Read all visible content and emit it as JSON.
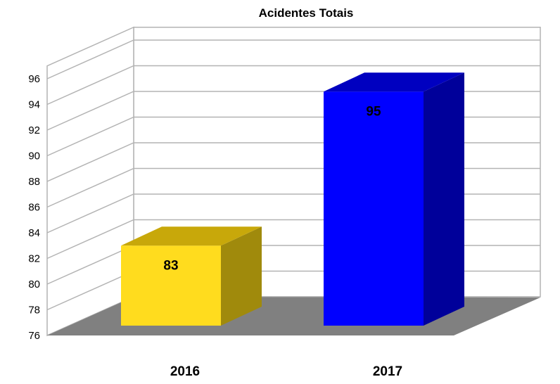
{
  "chart_data": {
    "type": "bar",
    "title": "Acidentes Totais",
    "categories": [
      "2016",
      "2017"
    ],
    "values": [
      83,
      95
    ],
    "data_labels": [
      "83",
      "95"
    ],
    "ylim": [
      76,
      97
    ],
    "yticks": [
      76,
      78,
      80,
      82,
      84,
      86,
      88,
      90,
      92,
      94,
      96
    ],
    "ytick_labels": [
      "76",
      "78",
      "80",
      "82",
      "84",
      "86",
      "88",
      "90",
      "92",
      "94",
      "96"
    ],
    "grid": true,
    "legend": "none",
    "three_d": true,
    "colors": {
      "bars": [
        "#ffdc1e",
        "#0000ff"
      ],
      "bar_tops": [
        "#c8a80a",
        "#0000c0"
      ],
      "bar_sides": [
        "#a08a0c",
        "#00009a"
      ],
      "floor": "#808080",
      "grid": "#b3b3b3"
    }
  }
}
